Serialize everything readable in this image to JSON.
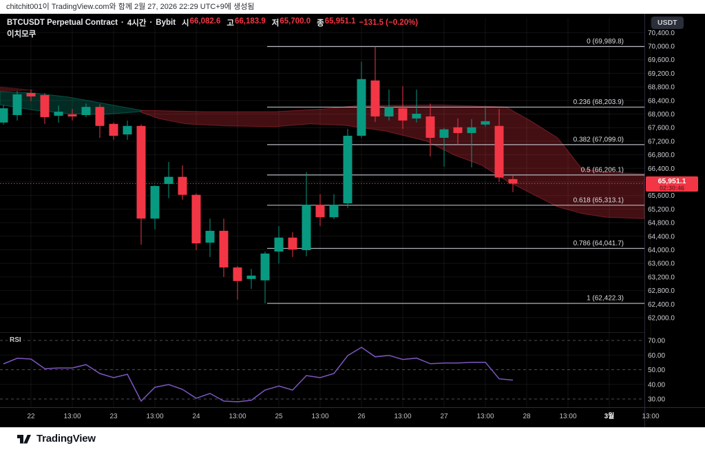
{
  "meta": {
    "attribution": "chitchit001이 TradingView.com와 함께 2월 27, 2026 22:29 UTC+9에 생성됨"
  },
  "header": {
    "symbol": "BTCUSDT Perpetual Contract",
    "separator": "·",
    "interval": "4시간",
    "exchange": "Bybit",
    "open_label": "시",
    "open": "66,082.6",
    "high_label": "고",
    "high": "66,183.9",
    "low_label": "저",
    "low": "65,700.0",
    "close_label": "종",
    "close": "65,951.1",
    "change": "−131.5 (−0.20%)",
    "indicator": "이치모쿠",
    "currency_button": "USDT"
  },
  "price_scale": {
    "labels": [
      "70,400.0",
      "70,000.0",
      "69,600.0",
      "69,200.0",
      "68,800.0",
      "68,400.0",
      "68,000.0",
      "67,600.0",
      "67,200.0",
      "66,800.0",
      "66,400.0",
      "66,000.0",
      "65,600.0",
      "65,200.0",
      "64,800.0",
      "64,400.0",
      "64,000.0",
      "63,600.0",
      "63,200.0",
      "62,800.0",
      "62,400.0",
      "62,000.0"
    ],
    "last_price": "65,951.1",
    "countdown": "02:30:46"
  },
  "rsi": {
    "label": "RSI",
    "scale_labels": [
      "70.00",
      "60.00",
      "50.00",
      "40.00",
      "30.00"
    ],
    "dashed_levels": [
      70,
      50,
      30
    ],
    "solid_levels": [
      60,
      40
    ]
  },
  "time_axis": [
    {
      "text": "22",
      "emphasis": false
    },
    {
      "text": "13:00",
      "emphasis": false
    },
    {
      "text": "23",
      "emphasis": false
    },
    {
      "text": "13:00",
      "emphasis": false
    },
    {
      "text": "24",
      "emphasis": false
    },
    {
      "text": "13:00",
      "emphasis": false
    },
    {
      "text": "25",
      "emphasis": false
    },
    {
      "text": "13:00",
      "emphasis": false
    },
    {
      "text": "26",
      "emphasis": false
    },
    {
      "text": "13:00",
      "emphasis": false
    },
    {
      "text": "27",
      "emphasis": false
    },
    {
      "text": "13:00",
      "emphasis": false
    },
    {
      "text": "28",
      "emphasis": false
    },
    {
      "text": "13:00",
      "emphasis": false
    },
    {
      "text": "3월",
      "emphasis": true
    },
    {
      "text": "13:00",
      "emphasis": false
    }
  ],
  "fib_levels": [
    {
      "label": "0 (69,989.8)",
      "price": 69989.8
    },
    {
      "label": "0.236 (68,203.9)",
      "price": 68203.9
    },
    {
      "label": "0.382 (67,099.0)",
      "price": 67099.0
    },
    {
      "label": "0.5 (66,206.1)",
      "price": 66206.1
    },
    {
      "label": "0.618 (65,313.1)",
      "price": 65313.1
    },
    {
      "label": "0.786 (64,041.7)",
      "price": 64041.7
    },
    {
      "label": "1 (62,422.3)",
      "price": 62422.3
    }
  ],
  "chart_data": {
    "type": "candlestick",
    "title": "BTCUSDT Perpetual Contract 4H Bybit with Ichimoku cloud, Fibonacci retracement and RSI",
    "ylim": [
      61800,
      70760
    ],
    "price_step": 400,
    "last_price": 65951.1,
    "candles": [
      [
        67750,
        68270,
        67690,
        68170
      ],
      [
        67970,
        68680,
        67810,
        68580
      ],
      [
        68620,
        68720,
        68380,
        68520
      ],
      [
        68560,
        68620,
        67710,
        67910
      ],
      [
        67950,
        68250,
        67750,
        68070
      ],
      [
        67990,
        68150,
        67810,
        67930
      ],
      [
        67970,
        68310,
        67910,
        68210
      ],
      [
        68210,
        68290,
        67300,
        67650
      ],
      [
        67710,
        67750,
        67240,
        67360
      ],
      [
        67400,
        67810,
        67240,
        67650
      ],
      [
        67650,
        67690,
        64150,
        64920
      ],
      [
        64920,
        65900,
        64600,
        65880
      ],
      [
        65940,
        66590,
        65520,
        66150
      ],
      [
        66150,
        66490,
        65480,
        65620
      ],
      [
        65620,
        65660,
        63990,
        64190
      ],
      [
        64210,
        64920,
        63790,
        64560
      ],
      [
        64560,
        64920,
        63200,
        63480
      ],
      [
        63480,
        63520,
        62530,
        63080
      ],
      [
        63140,
        63440,
        62850,
        63240
      ],
      [
        63100,
        63950,
        62422.3,
        63890
      ],
      [
        63950,
        64700,
        63600,
        64360
      ],
      [
        64360,
        64520,
        63790,
        64010
      ],
      [
        63990,
        66290,
        63810,
        65330
      ],
      [
        65330,
        65640,
        64700,
        64960
      ],
      [
        64960,
        65640,
        64900,
        65330
      ],
      [
        65370,
        67560,
        65230,
        67360
      ],
      [
        67360,
        69540,
        67300,
        69030
      ],
      [
        68990,
        69989.8,
        67770,
        67930
      ],
      [
        67930,
        68720,
        67810,
        68210
      ],
      [
        68170,
        68820,
        67560,
        67810
      ],
      [
        67870,
        68720,
        67750,
        68010
      ],
      [
        67930,
        68310,
        66750,
        67300
      ],
      [
        67300,
        67590,
        66450,
        67550
      ],
      [
        67610,
        67870,
        67100,
        67440
      ],
      [
        67440,
        67850,
        66430,
        67610
      ],
      [
        67690,
        68250,
        67630,
        67790
      ],
      [
        67650,
        68150,
        66000,
        66130
      ],
      [
        66082.6,
        66183.9,
        65700.0,
        65951.1
      ]
    ],
    "rsi_series": [
      54.0,
      57.8,
      57.3,
      50.7,
      51.2,
      51.2,
      53.5,
      47.4,
      44.6,
      46.9,
      28.6,
      38.0,
      39.9,
      36.6,
      30.5,
      33.8,
      28.6,
      28.1,
      29.1,
      36.1,
      38.9,
      36.1,
      46.0,
      44.6,
      47.4,
      59.6,
      65.3,
      58.8,
      59.8,
      57.0,
      57.9,
      54.1,
      54.6,
      54.6,
      55.1,
      55.1,
      43.8,
      42.9
    ],
    "ichimoku_cloud": {
      "bullish_upper": [
        [
          0,
          68660
        ],
        [
          50,
          68620
        ],
        [
          100,
          68500
        ],
        [
          150,
          68315
        ],
        [
          205,
          68112
        ]
      ],
      "bullish_lower": [
        [
          0,
          68274
        ],
        [
          50,
          68112
        ],
        [
          100,
          68010
        ],
        [
          150,
          67990
        ],
        [
          205,
          68071
        ]
      ],
      "bullish_sliver": [
        [
          0,
          68810
        ],
        [
          55,
          68700
        ],
        [
          0,
          68660
        ]
      ],
      "bearish_upper": [
        [
          205,
          68110
        ],
        [
          300,
          68070
        ],
        [
          400,
          68070
        ],
        [
          470,
          68150
        ],
        [
          520,
          68250
        ],
        [
          640,
          68270
        ],
        [
          735,
          68210
        ],
        [
          770,
          67810
        ],
        [
          810,
          67300
        ],
        [
          845,
          66390
        ],
        [
          880,
          66280
        ],
        [
          936,
          66240
        ]
      ],
      "bearish_lower": [
        [
          205,
          68050
        ],
        [
          230,
          67870
        ],
        [
          270,
          67710
        ],
        [
          330,
          67650
        ],
        [
          400,
          67630
        ],
        [
          450,
          67710
        ],
        [
          500,
          67670
        ],
        [
          560,
          67500
        ],
        [
          620,
          67200
        ],
        [
          660,
          66790
        ],
        [
          700,
          66490
        ],
        [
          735,
          66040
        ],
        [
          770,
          65680
        ],
        [
          810,
          65270
        ],
        [
          845,
          65070
        ],
        [
          880,
          64960
        ],
        [
          936,
          64920
        ]
      ]
    }
  },
  "footer": {
    "brand": "TradingView"
  },
  "colors": {
    "up": "#089981",
    "down": "#f23645",
    "cloud_up": "rgba(8,153,129,0.28)",
    "cloud_down": "rgba(242,54,69,0.28)",
    "rsi_line": "#7e57c2",
    "fib_line": "#b8bac1",
    "fib_text": "#dcdde0",
    "grid": "rgba(255,255,255,0.07)",
    "axis_text": "#cfd1d6",
    "time_text": "#c0c2c6",
    "time_text_emphasis": "#eceef0",
    "separator": "#2a2e39",
    "rsi_dash": "#4d5058",
    "badge_bg": "#f23645"
  }
}
